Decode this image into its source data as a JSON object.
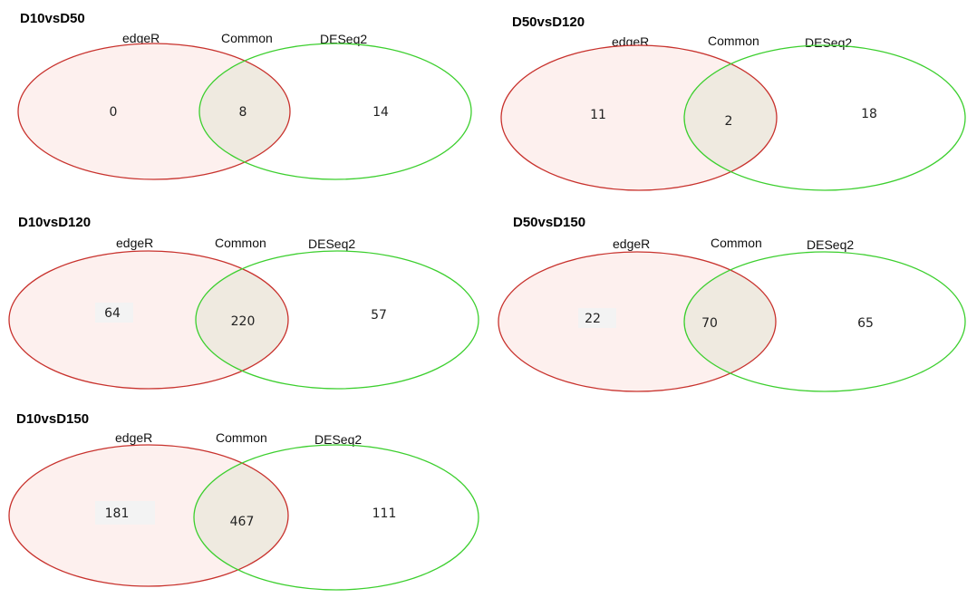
{
  "colors": {
    "edger_stroke": "#c8322d",
    "edger_fill": "#fdf0ee",
    "deseq_stroke": "#3ccf2e",
    "overlap_fill": "#efeae0"
  },
  "panels": [
    {
      "title": "D10vsD50",
      "left_label": "edgeR",
      "mid_label": "Common",
      "right_label": "DESeq2",
      "left": "0",
      "common": "8",
      "right": "14"
    },
    {
      "title": "D50vsD120",
      "left_label": "edgeR",
      "mid_label": "Common",
      "right_label": "DESeq2",
      "left": "11",
      "common": "2",
      "right": "18"
    },
    {
      "title": "D10vsD120",
      "left_label": "edgeR",
      "mid_label": "Common",
      "right_label": "DESeq2",
      "left": "64",
      "common": "220",
      "right": "57"
    },
    {
      "title": "D50vsD150",
      "left_label": "edgeR",
      "mid_label": "Common",
      "right_label": "DESeq2",
      "left": "22",
      "common": "70",
      "right": "65"
    },
    {
      "title": "D10vsD150",
      "left_label": "edgeR",
      "mid_label": "Common",
      "right_label": "DESeq2",
      "left": "181",
      "common": "467",
      "right": "111"
    }
  ]
}
